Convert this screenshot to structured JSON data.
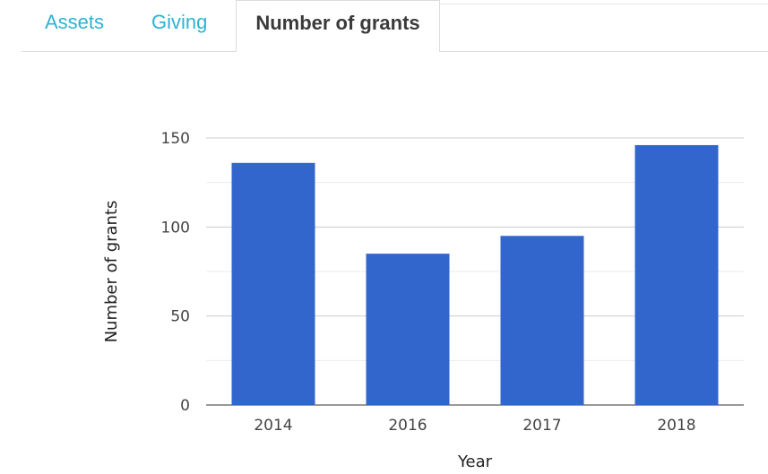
{
  "tabs": [
    {
      "label": "Assets",
      "active": false
    },
    {
      "label": "Giving",
      "active": false
    },
    {
      "label": "Number of grants",
      "active": true
    }
  ],
  "chart_data": {
    "type": "bar",
    "categories": [
      "2014",
      "2016",
      "2017",
      "2018"
    ],
    "values": [
      136,
      85,
      95,
      146
    ],
    "xlabel": "Year",
    "ylabel": "Number of grants",
    "ylim": [
      0,
      150
    ],
    "yticks": [
      0,
      50,
      100,
      150
    ],
    "grid": true,
    "bar_color": "#3366cc",
    "gridline_color": "#cccccc",
    "minor_gridline_color": "#ebebeb"
  }
}
